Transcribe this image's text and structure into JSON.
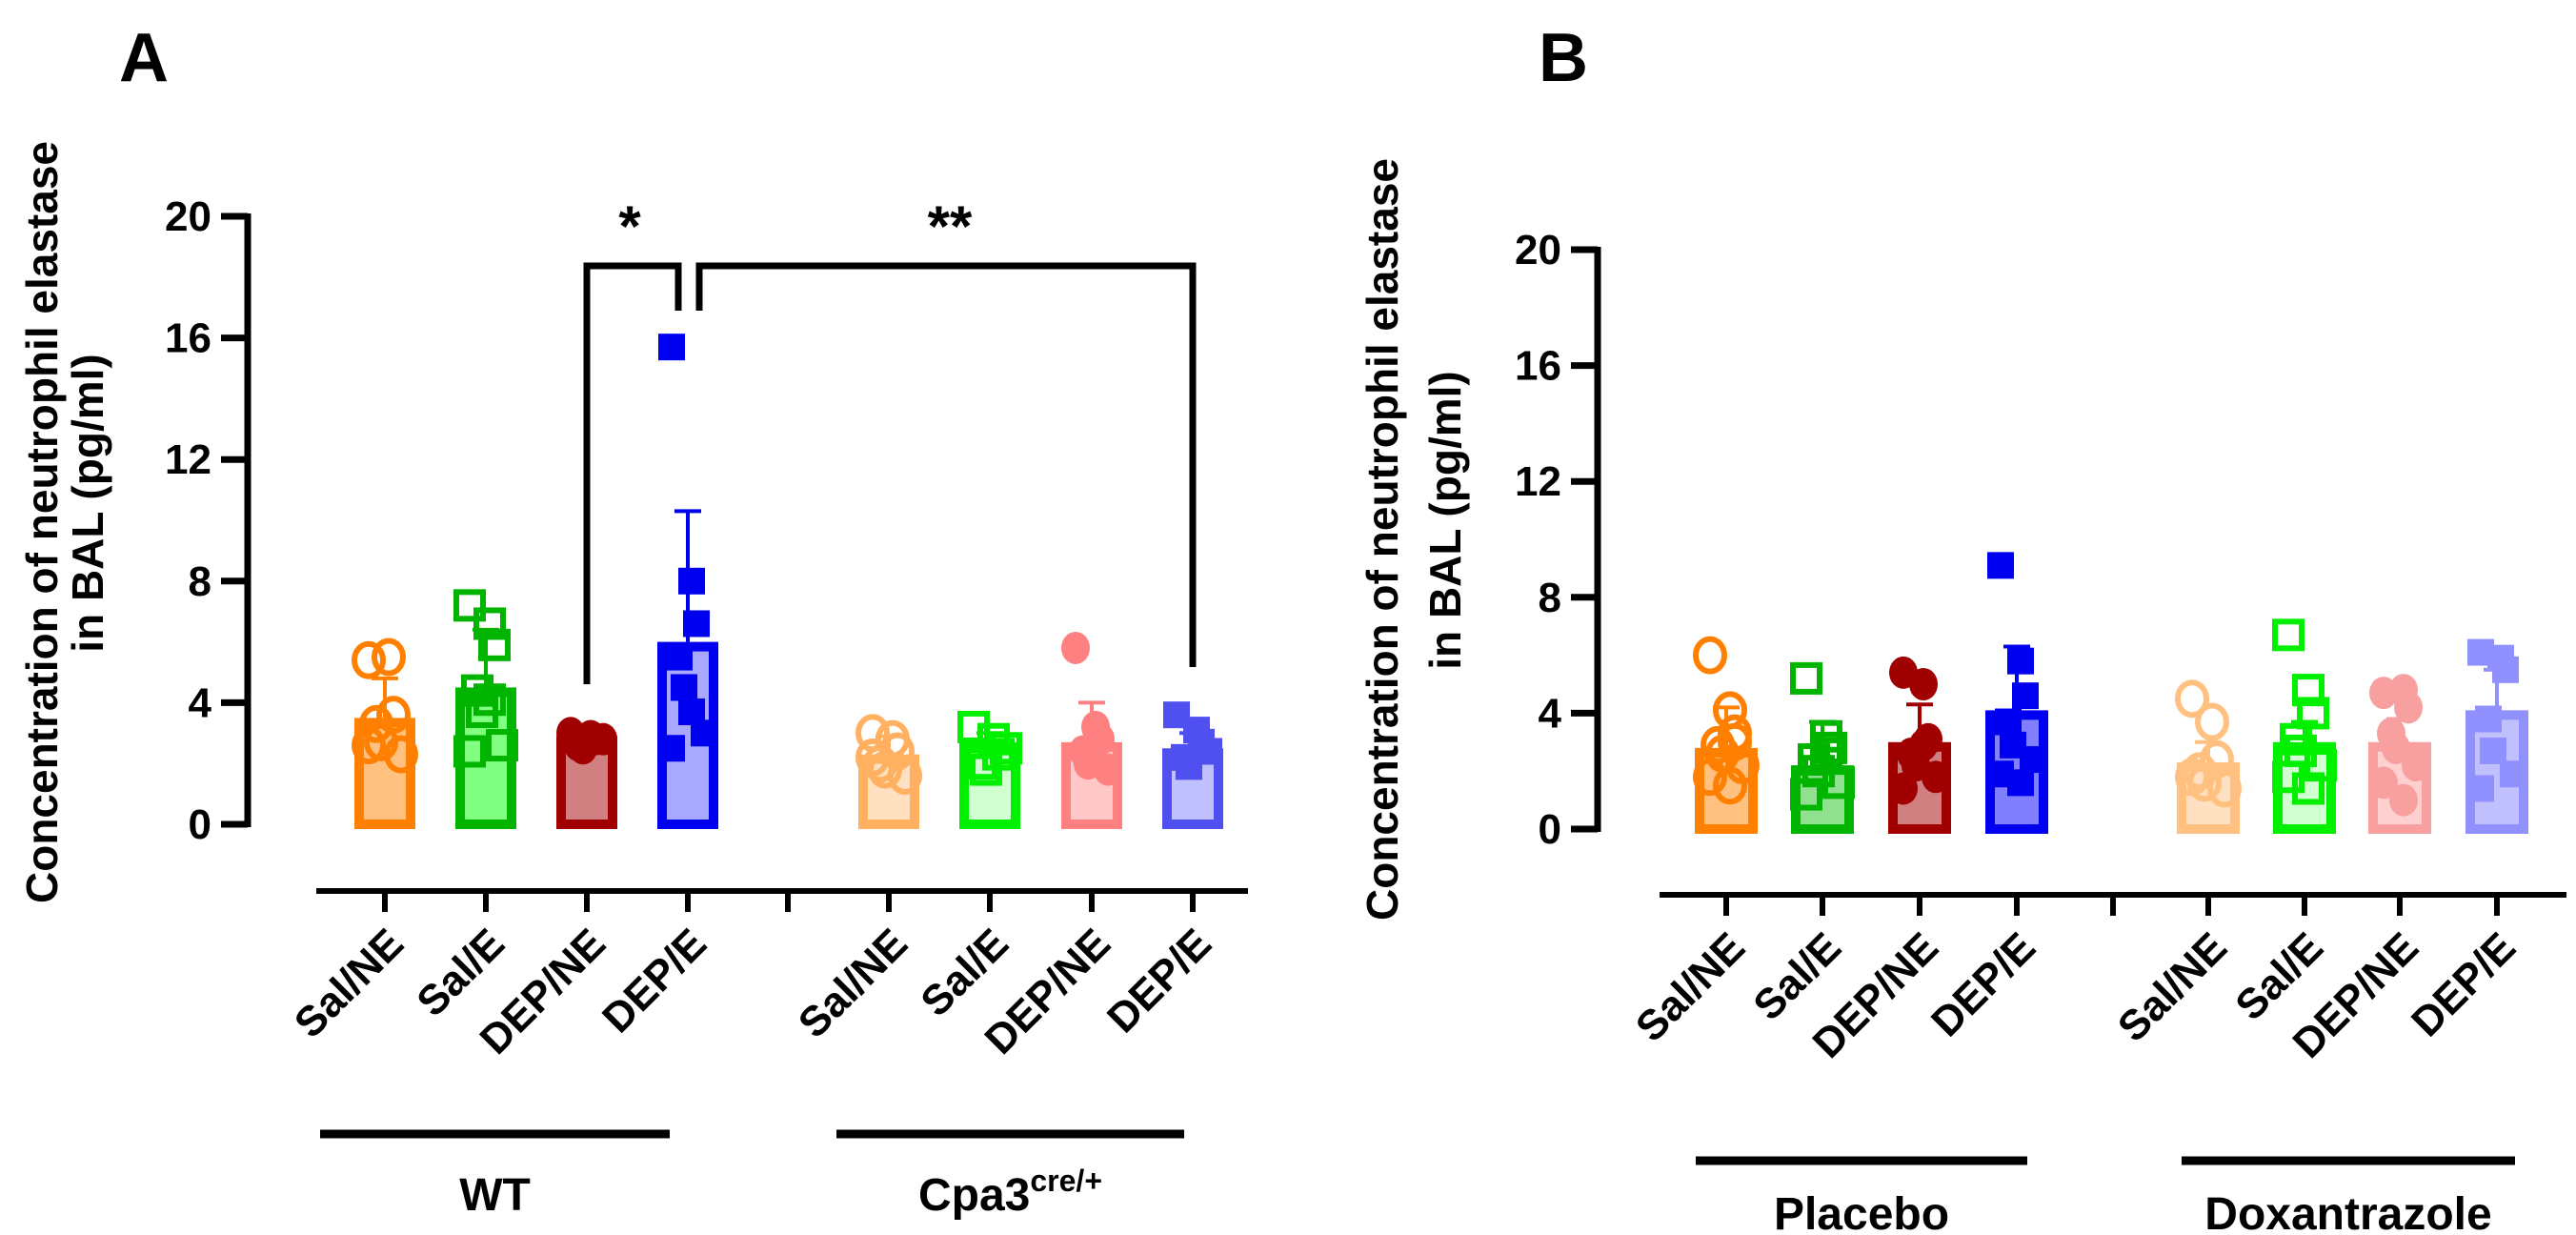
{
  "chart_data": [
    {
      "panel": "A",
      "type": "bar",
      "ylabel_line1": "Concentration of neutrophil elastase",
      "ylabel_line2": "in BAL (pg/ml)",
      "ylim": [
        0,
        20
      ],
      "yticks": [
        "0",
        "4",
        "8",
        "12",
        "16",
        "20"
      ],
      "ytick_values": [
        0,
        4,
        8,
        12,
        16,
        20
      ],
      "groups": [
        {
          "label": "WT",
          "label_sup": "",
          "bars": [
            {
              "category": "Sal/NE",
              "mean": 3.5,
              "err_top": 4.8,
              "marker": "open-circle",
              "stroke": "#FF8000",
              "fill": "#FFC080",
              "points": [
                5.4,
                5.5,
                3.6,
                3.3,
                2.7,
                2.3,
                2.6
              ]
            },
            {
              "category": "Sal/E",
              "mean": 4.5,
              "err_top": 6.4,
              "marker": "open-square",
              "stroke": "#00B400",
              "fill": "#80FF80",
              "points": [
                7.2,
                6.6,
                5.9,
                4.4,
                3.7,
                2.6,
                2.4,
                4.1
              ]
            },
            {
              "category": "DEP/NE",
              "mean": 2.9,
              "err_top": 3.1,
              "marker": "filled-circle",
              "stroke": "#A00000",
              "fill": "#D08080",
              "points": [
                3.0,
                2.9,
                2.8,
                2.6,
                2.5,
                2.8
              ]
            },
            {
              "category": "DEP/E",
              "mean": 6.0,
              "err_top": 10.3,
              "marker": "filled-square",
              "stroke": "#0000F0",
              "fill": "#A8A8FF",
              "points": [
                15.7,
                8.0,
                6.6,
                5.5,
                4.5,
                3.0,
                2.5,
                3.7
              ]
            }
          ]
        },
        {
          "label": "Cpa3",
          "label_sup": "cre/+",
          "bars": [
            {
              "category": "Sal/NE",
              "mean": 2.3,
              "err_top": 2.9,
              "marker": "open-circle",
              "stroke": "#FFB060",
              "fill": "#FFE0C0",
              "points": [
                3.0,
                2.8,
                2.4,
                2.0,
                1.8,
                1.6,
                2.2
              ]
            },
            {
              "category": "Sal/E",
              "mean": 2.7,
              "err_top": 3.0,
              "marker": "open-square",
              "stroke": "#00F000",
              "fill": "#D0FFD0",
              "points": [
                3.2,
                2.8,
                2.3,
                2.0,
                1.8,
                2.5
              ]
            },
            {
              "category": "DEP/NE",
              "mean": 2.7,
              "err_top": 4.0,
              "marker": "filled-circle",
              "stroke": "#FF8080",
              "fill": "#FFC8C8",
              "points": [
                5.8,
                3.2,
                2.8,
                2.4,
                2.0,
                1.8
              ]
            },
            {
              "category": "DEP/E",
              "mean": 2.5,
              "err_top": 3.0,
              "marker": "filled-square",
              "stroke": "#5050F0",
              "fill": "#C0C0FF",
              "points": [
                3.6,
                3.1,
                2.7,
                2.2,
                1.9,
                2.4
              ]
            }
          ]
        }
      ],
      "significance": [
        {
          "label": "*",
          "from": "WT DEP/NE",
          "to": "WT DEP/E"
        },
        {
          "label": "**",
          "from": "WT DEP/E",
          "to": "Cpa3 DEP/E"
        }
      ]
    },
    {
      "panel": "B",
      "type": "bar",
      "ylabel_line1": "Concentration of neutrophil elastase",
      "ylabel_line2": "in BAL (pg/ml)",
      "ylim": [
        0,
        20
      ],
      "yticks": [
        "0",
        "4",
        "8",
        "12",
        "16",
        "20"
      ],
      "ytick_values": [
        0,
        4,
        8,
        12,
        16,
        20
      ],
      "groups": [
        {
          "label": "Placebo",
          "label_sup": "",
          "bars": [
            {
              "category": "Sal/NE",
              "mean": 2.8,
              "err_top": 4.2,
              "marker": "open-circle",
              "stroke": "#FF8000",
              "fill": "#FFC080",
              "points": [
                6.0,
                4.1,
                3.3,
                2.9,
                2.6,
                2.2,
                1.8,
                1.5,
                3.0
              ]
            },
            {
              "category": "Sal/E",
              "mean": 2.2,
              "err_top": 3.7,
              "marker": "open-square",
              "stroke": "#00B400",
              "fill": "#90E090",
              "points": [
                5.2,
                3.2,
                2.8,
                2.4,
                2.0,
                1.6,
                1.2,
                2.6
              ]
            },
            {
              "category": "DEP/NE",
              "mean": 3.0,
              "err_top": 4.3,
              "marker": "filled-circle",
              "stroke": "#A00000",
              "fill": "#D08080",
              "points": [
                5.4,
                5.0,
                3.1,
                2.6,
                2.2,
                1.8,
                1.4,
                2.9
              ]
            },
            {
              "category": "DEP/E",
              "mean": 4.1,
              "err_top": 6.3,
              "marker": "filled-square",
              "stroke": "#0000F0",
              "fill": "#8080FF",
              "points": [
                9.1,
                5.8,
                4.6,
                3.7,
                2.9,
                2.4,
                1.9,
                1.6
              ]
            }
          ]
        },
        {
          "label": "Doxantrazole",
          "label_sup": "",
          "bars": [
            {
              "category": "Sal/NE",
              "mean": 2.3,
              "err_top": 3.0,
              "marker": "open-circle",
              "stroke": "#FFC080",
              "fill": "#FFE0C0",
              "points": [
                4.5,
                3.7,
                2.4,
                2.0,
                1.6,
                1.4,
                1.8
              ]
            },
            {
              "category": "Sal/E",
              "mean": 3.0,
              "err_top": 3.7,
              "marker": "open-square",
              "stroke": "#00F000",
              "fill": "#D0FFD0",
              "points": [
                6.7,
                4.8,
                4.0,
                3.1,
                2.7,
                2.2,
                1.8,
                1.4
              ]
            },
            {
              "category": "DEP/NE",
              "mean": 3.0,
              "err_top": 3.8,
              "marker": "filled-circle",
              "stroke": "#F8A0A0",
              "fill": "#FFD0D0",
              "points": [
                4.7,
                4.8,
                4.2,
                3.3,
                2.8,
                2.2,
                1.6,
                1.0
              ]
            },
            {
              "category": "DEP/E",
              "mean": 4.1,
              "err_top": 5.5,
              "marker": "filled-square",
              "stroke": "#9090FF",
              "fill": "#C0C0FF",
              "points": [
                6.1,
                5.9,
                5.5,
                3.8,
                2.7,
                1.9,
                1.4
              ]
            }
          ]
        }
      ],
      "significance": []
    }
  ]
}
